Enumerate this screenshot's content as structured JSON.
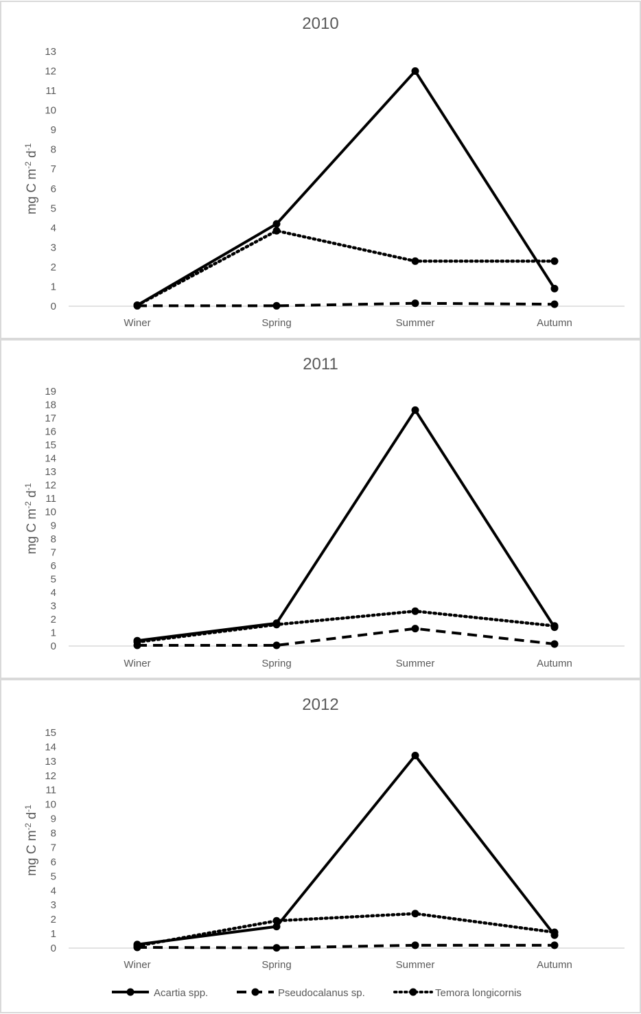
{
  "chart_data": [
    {
      "type": "line",
      "title": "2010",
      "categories": [
        "Winer",
        "Spring",
        "Summer",
        "Autumn"
      ],
      "ylabel": {
        "base": "mg C m",
        "sup1": "-2",
        "mid": " d",
        "sup2": "-1"
      },
      "ylim": [
        0,
        13
      ],
      "yticks": [
        0,
        1,
        2,
        3,
        4,
        5,
        6,
        7,
        8,
        9,
        10,
        11,
        12,
        13
      ],
      "series": [
        {
          "name": "Acartia spp.",
          "style": "solid",
          "values": [
            0.05,
            4.2,
            12.0,
            0.9
          ]
        },
        {
          "name": "Pseudocalanus sp.",
          "style": "dashed",
          "values": [
            0.02,
            0.02,
            0.15,
            0.1
          ]
        },
        {
          "name": "Temora longicornis",
          "style": "dotted",
          "values": [
            0.05,
            3.85,
            2.3,
            2.3
          ]
        }
      ]
    },
    {
      "type": "line",
      "title": "2011",
      "categories": [
        "Winer",
        "Spring",
        "Summer",
        "Autumn"
      ],
      "ylabel": {
        "base": "mg C m",
        "sup1": "-2",
        "mid": " d",
        "sup2": "-1"
      },
      "ylim": [
        0,
        19
      ],
      "yticks": [
        0,
        1,
        2,
        3,
        4,
        5,
        6,
        7,
        8,
        9,
        10,
        11,
        12,
        13,
        14,
        15,
        16,
        17,
        18,
        19
      ],
      "series": [
        {
          "name": "Acartia spp.",
          "style": "solid",
          "values": [
            0.4,
            1.7,
            17.6,
            1.4
          ]
        },
        {
          "name": "Pseudocalanus sp.",
          "style": "dashed",
          "values": [
            0.05,
            0.05,
            1.3,
            0.15
          ]
        },
        {
          "name": "Temora longicornis",
          "style": "dotted",
          "values": [
            0.3,
            1.6,
            2.6,
            1.5
          ]
        }
      ]
    },
    {
      "type": "line",
      "title": "2012",
      "categories": [
        "Winer",
        "Spring",
        "Summer",
        "Autumn"
      ],
      "ylabel": {
        "base": "mg C m",
        "sup1": "-2",
        "mid": " d",
        "sup2": "-1"
      },
      "ylim": [
        0,
        15
      ],
      "yticks": [
        0,
        1,
        2,
        3,
        4,
        5,
        6,
        7,
        8,
        9,
        10,
        11,
        12,
        13,
        14,
        15
      ],
      "series": [
        {
          "name": "Acartia spp.",
          "style": "solid",
          "values": [
            0.25,
            1.5,
            13.4,
            0.9
          ]
        },
        {
          "name": "Pseudocalanus sp.",
          "style": "dashed",
          "values": [
            0.05,
            0.02,
            0.2,
            0.2
          ]
        },
        {
          "name": "Temora longicornis",
          "style": "dotted",
          "values": [
            0.15,
            1.9,
            2.4,
            1.1
          ]
        }
      ],
      "legend": {
        "position": "bottom",
        "entries": [
          "Acartia spp.",
          "Pseudocalanus sp.",
          "Temora longicornis"
        ]
      }
    }
  ],
  "colors": {
    "line": "#000000",
    "text": "#595959",
    "axis": "#d9d9d9",
    "border": "#d9d9d9"
  }
}
